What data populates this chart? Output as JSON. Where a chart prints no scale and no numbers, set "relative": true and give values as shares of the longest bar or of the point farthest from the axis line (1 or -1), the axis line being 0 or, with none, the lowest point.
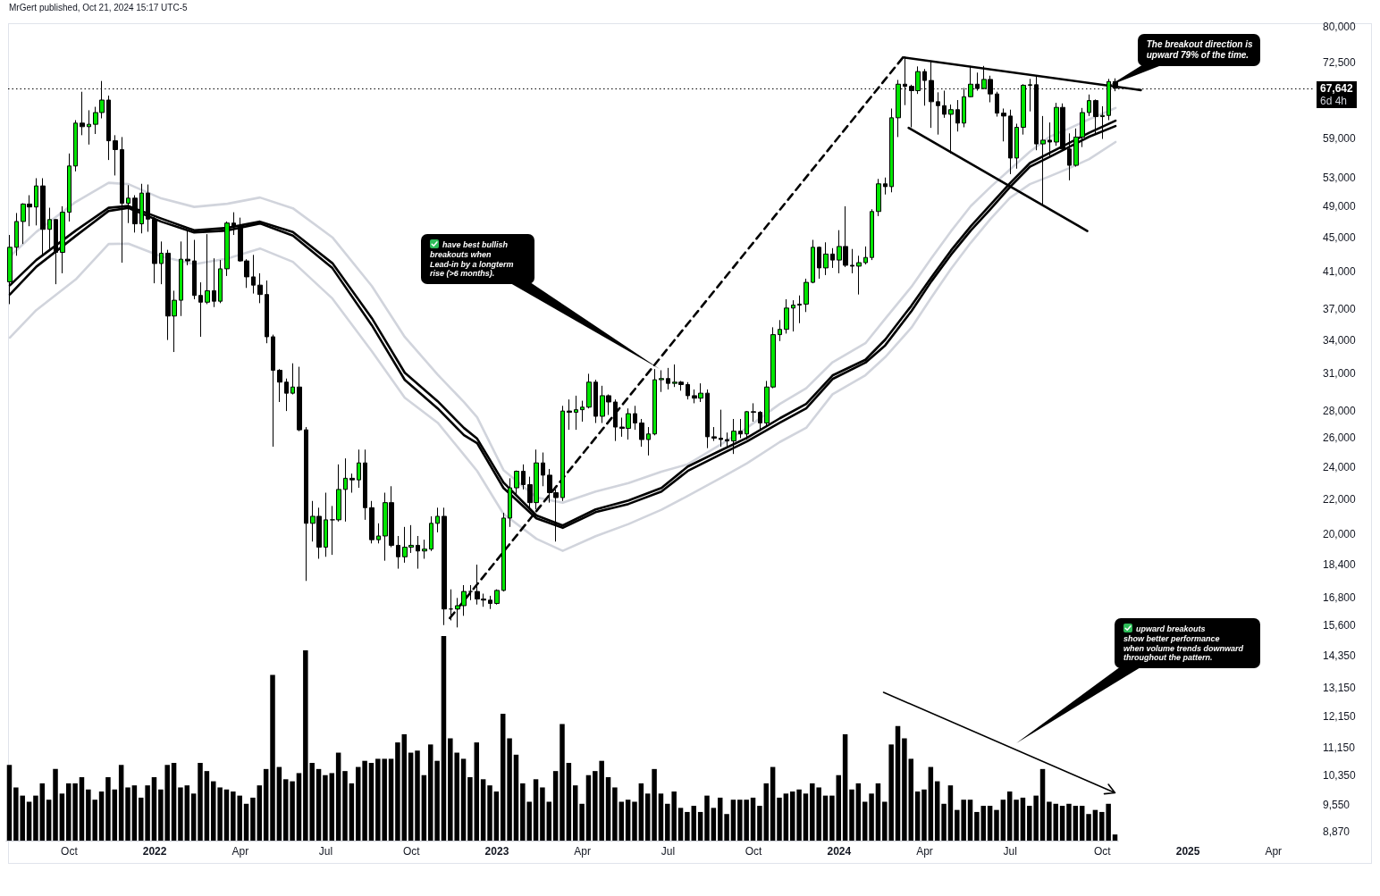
{
  "chart_data": [
    {
      "type": "candlestick",
      "title": "MrGert published, Oct 21, 2024 15:17 UTC-5",
      "x": [
        "2021-08-02",
        "2021-08-09",
        "2021-08-16",
        "2021-08-23",
        "2021-08-30",
        "2021-09-06",
        "2021-09-13",
        "2021-09-20",
        "2021-09-27",
        "2021-10-04",
        "2021-10-11",
        "2021-10-18",
        "2021-10-25",
        "2021-11-01",
        "2021-11-08",
        "2021-11-15",
        "2021-11-22",
        "2021-11-29",
        "2021-12-06",
        "2021-12-13",
        "2021-12-20",
        "2021-12-27",
        "2022-01-03",
        "2022-01-10",
        "2022-01-17",
        "2022-01-24",
        "2022-01-31",
        "2022-02-07",
        "2022-02-14",
        "2022-02-21",
        "2022-02-28",
        "2022-03-07",
        "2022-03-14",
        "2022-03-21",
        "2022-03-28",
        "2022-04-04",
        "2022-04-11",
        "2022-04-18",
        "2022-04-25",
        "2022-05-02",
        "2022-05-09",
        "2022-05-16",
        "2022-05-23",
        "2022-05-30",
        "2022-06-06",
        "2022-06-13",
        "2022-06-20",
        "2022-06-27",
        "2022-07-04",
        "2022-07-11",
        "2022-07-18",
        "2022-07-25",
        "2022-08-01",
        "2022-08-08",
        "2022-08-15",
        "2022-08-22",
        "2022-08-29",
        "2022-09-05",
        "2022-09-12",
        "2022-09-19",
        "2022-09-26",
        "2022-10-03",
        "2022-10-10",
        "2022-10-17",
        "2022-10-24",
        "2022-10-31",
        "2022-11-07",
        "2022-11-14",
        "2022-11-21",
        "2022-11-28",
        "2022-12-05",
        "2022-12-12",
        "2022-12-19",
        "2022-12-26",
        "2023-01-02",
        "2023-01-09",
        "2023-01-16",
        "2023-01-23",
        "2023-01-30",
        "2023-02-06",
        "2023-02-13",
        "2023-02-20",
        "2023-02-27",
        "2023-03-06",
        "2023-03-13",
        "2023-03-20",
        "2023-03-27",
        "2023-04-03",
        "2023-04-10",
        "2023-04-17",
        "2023-04-24",
        "2023-05-01",
        "2023-05-08",
        "2023-05-15",
        "2023-05-22",
        "2023-05-29",
        "2023-06-05",
        "2023-06-12",
        "2023-06-19",
        "2023-06-26",
        "2023-07-03",
        "2023-07-10",
        "2023-07-17",
        "2023-07-24",
        "2023-07-31",
        "2023-08-07",
        "2023-08-14",
        "2023-08-21",
        "2023-08-28",
        "2023-09-04",
        "2023-09-11",
        "2023-09-18",
        "2023-09-25",
        "2023-10-02",
        "2023-10-09",
        "2023-10-16",
        "2023-10-23",
        "2023-10-30",
        "2023-11-06",
        "2023-11-13",
        "2023-11-20",
        "2023-11-27",
        "2023-12-04",
        "2023-12-11",
        "2023-12-18",
        "2023-12-25",
        "2024-01-01",
        "2024-01-08",
        "2024-01-15",
        "2024-01-22",
        "2024-01-29",
        "2024-02-05",
        "2024-02-12",
        "2024-02-19",
        "2024-02-26",
        "2024-03-04",
        "2024-03-11",
        "2024-03-18",
        "2024-03-25",
        "2024-04-01",
        "2024-04-08",
        "2024-04-15",
        "2024-04-22",
        "2024-04-29",
        "2024-05-06",
        "2024-05-13",
        "2024-05-20",
        "2024-05-27",
        "2024-06-03",
        "2024-06-10",
        "2024-06-17",
        "2024-06-24",
        "2024-07-01",
        "2024-07-08",
        "2024-07-15",
        "2024-07-22",
        "2024-07-29",
        "2024-08-05",
        "2024-08-12",
        "2024-08-19",
        "2024-08-26",
        "2024-09-02",
        "2024-09-09",
        "2024-09-16",
        "2024-09-23",
        "2024-09-30",
        "2024-10-07",
        "2024-10-14",
        "2024-10-21"
      ],
      "ohlc": [
        [
          39860,
          45300,
          37500,
          43800
        ],
        [
          43800,
          48100,
          42800,
          47000
        ],
        [
          47000,
          49400,
          44200,
          49300
        ],
        [
          49300,
          50500,
          46400,
          48900
        ],
        [
          48900,
          52900,
          46500,
          51800
        ],
        [
          51800,
          52900,
          42800,
          46000
        ],
        [
          46000,
          48800,
          43400,
          47250
        ],
        [
          47250,
          47300,
          39600,
          43200
        ],
        [
          43200,
          49000,
          40800,
          48200
        ],
        [
          48200,
          56600,
          47000,
          54700
        ],
        [
          54700,
          62000,
          53900,
          61500
        ],
        [
          61500,
          67000,
          59500,
          60900
        ],
        [
          60900,
          63700,
          58000,
          61300
        ],
        [
          61300,
          64300,
          59700,
          63300
        ],
        [
          63300,
          69000,
          62300,
          65500
        ],
        [
          65500,
          66300,
          55600,
          58600
        ],
        [
          58600,
          59500,
          53300,
          57200
        ],
        [
          57200,
          59200,
          42000,
          49400
        ],
        [
          49400,
          51900,
          46800,
          50100
        ],
        [
          50100,
          50500,
          45600,
          46700
        ],
        [
          46700,
          52100,
          45500,
          50800
        ],
        [
          50800,
          52000,
          45700,
          47300
        ],
        [
          47300,
          47600,
          39700,
          41900
        ],
        [
          41900,
          44500,
          39600,
          43100
        ],
        [
          43100,
          43500,
          34000,
          36300
        ],
        [
          36300,
          38900,
          32900,
          37900
        ],
        [
          37900,
          44500,
          36300,
          42400
        ],
        [
          42400,
          45800,
          41700,
          42200
        ],
        [
          42200,
          44700,
          38000,
          38400
        ],
        [
          38400,
          39800,
          34300,
          37700
        ],
        [
          37700,
          45400,
          37500,
          38900
        ],
        [
          38900,
          42500,
          37200,
          37800
        ],
        [
          37800,
          42300,
          37600,
          41300
        ],
        [
          41300,
          47000,
          40500,
          46800
        ],
        [
          46800,
          48200,
          45300,
          46400
        ],
        [
          46400,
          47500,
          42100,
          42200
        ],
        [
          42200,
          42400,
          39200,
          40400
        ],
        [
          40400,
          42900,
          38600,
          39500
        ],
        [
          39500,
          40800,
          37600,
          38500
        ],
        [
          38500,
          40000,
          33700,
          34300
        ],
        [
          34300,
          34500,
          25400,
          31300
        ],
        [
          31300,
          31400,
          28700,
          30300
        ],
        [
          30300,
          30600,
          28000,
          29400
        ],
        [
          29400,
          31900,
          29300,
          29900
        ],
        [
          29900,
          31600,
          26500,
          26600
        ],
        [
          26600,
          26800,
          17600,
          20600
        ],
        [
          20600,
          21900,
          19600,
          21000
        ],
        [
          21000,
          21500,
          18700,
          19300
        ],
        [
          19300,
          22400,
          18800,
          20800
        ],
        [
          20800,
          21600,
          18900,
          20800
        ],
        [
          20800,
          24200,
          20700,
          22600
        ],
        [
          22600,
          24600,
          20700,
          23300
        ],
        [
          23300,
          23600,
          22400,
          23200
        ],
        [
          23200,
          25200,
          22700,
          24300
        ],
        [
          24300,
          25200,
          20800,
          21500
        ],
        [
          21500,
          21900,
          19500,
          19700
        ],
        [
          19700,
          20600,
          19500,
          19900
        ],
        [
          19900,
          22400,
          18600,
          21800
        ],
        [
          21800,
          22800,
          19300,
          19400
        ],
        [
          19400,
          19900,
          18200,
          18800
        ],
        [
          18800,
          20400,
          18500,
          19300
        ],
        [
          19300,
          20500,
          19000,
          19400
        ],
        [
          19400,
          19900,
          18200,
          19100
        ],
        [
          19100,
          19700,
          18700,
          19200
        ],
        [
          19200,
          21000,
          19100,
          20600
        ],
        [
          20600,
          21500,
          20100,
          21000
        ],
        [
          21000,
          21500,
          15600,
          16300
        ],
        [
          16300,
          17200,
          15800,
          16300
        ],
        [
          16300,
          16800,
          15500,
          16450
        ],
        [
          16450,
          17400,
          16000,
          17100
        ],
        [
          17100,
          17400,
          16700,
          17100
        ],
        [
          17100,
          18400,
          16500,
          16750
        ],
        [
          16750,
          17000,
          16400,
          16700
        ],
        [
          16700,
          16900,
          16300,
          16550
        ],
        [
          16550,
          17200,
          16500,
          17150
        ],
        [
          17150,
          21200,
          17100,
          20900
        ],
        [
          20900,
          23300,
          20400,
          22700
        ],
        [
          22700,
          23800,
          22300,
          23750
        ],
        [
          23750,
          24200,
          22600,
          22900
        ],
        [
          22900,
          23400,
          21400,
          21800
        ],
        [
          21800,
          25200,
          21400,
          24300
        ],
        [
          24300,
          25000,
          22800,
          23500
        ],
        [
          23500,
          23900,
          21800,
          22400
        ],
        [
          22400,
          22600,
          19600,
          22100
        ],
        [
          22100,
          28400,
          21900,
          28000
        ],
        [
          28000,
          28900,
          26600,
          27900
        ],
        [
          27900,
          29200,
          26600,
          28100
        ],
        [
          28100,
          28800,
          27200,
          28300
        ],
        [
          28300,
          31000,
          28200,
          30300
        ],
        [
          30300,
          30500,
          27100,
          27600
        ],
        [
          27600,
          30000,
          27100,
          29200
        ],
        [
          29200,
          29300,
          27700,
          28700
        ],
        [
          28700,
          28900,
          25800,
          26800
        ],
        [
          26800,
          27500,
          26100,
          26700
        ],
        [
          26700,
          28200,
          25900,
          27800
        ],
        [
          27800,
          28400,
          26600,
          27100
        ],
        [
          27100,
          27400,
          25400,
          25900
        ],
        [
          25900,
          26800,
          24800,
          26300
        ],
        [
          26300,
          31400,
          26200,
          30500
        ],
        [
          30500,
          31300,
          29500,
          30600
        ],
        [
          30600,
          31500,
          29700,
          30200
        ],
        [
          30200,
          31800,
          29900,
          30300
        ],
        [
          30300,
          30400,
          29600,
          30100
        ],
        [
          30100,
          30300,
          28900,
          29200
        ],
        [
          29200,
          29700,
          28600,
          29000
        ],
        [
          29000,
          30200,
          28700,
          29400
        ],
        [
          29400,
          29700,
          25300,
          26100
        ],
        [
          26100,
          26800,
          25800,
          26000
        ],
        [
          26000,
          28100,
          25400,
          25900
        ],
        [
          25900,
          26400,
          25300,
          25800
        ],
        [
          25800,
          27400,
          24900,
          26500
        ],
        [
          26500,
          27400,
          26000,
          26300
        ],
        [
          26300,
          28000,
          25900,
          27950
        ],
        [
          27950,
          28600,
          27200,
          27900
        ],
        [
          27900,
          28000,
          26500,
          27100
        ],
        [
          27100,
          30400,
          26800,
          29900
        ],
        [
          29900,
          35200,
          29800,
          34500
        ],
        [
          34500,
          35900,
          33900,
          35000
        ],
        [
          35000,
          38000,
          34600,
          37100
        ],
        [
          37100,
          37900,
          34800,
          37400
        ],
        [
          37400,
          38400,
          35600,
          37500
        ],
        [
          37500,
          40200,
          36700,
          39800
        ],
        [
          39800,
          44700,
          39700,
          43800
        ],
        [
          43800,
          43900,
          40200,
          41400
        ],
        [
          41400,
          44400,
          40600,
          43000
        ],
        [
          43000,
          43700,
          41400,
          42300
        ],
        [
          42300,
          45900,
          40800,
          43900
        ],
        [
          43900,
          49000,
          41500,
          41700
        ],
        [
          41700,
          43600,
          40800,
          41600
        ],
        [
          41600,
          42800,
          38500,
          42000
        ],
        [
          42000,
          43900,
          41800,
          42600
        ],
        [
          42600,
          48600,
          42300,
          48300
        ],
        [
          48300,
          52800,
          47700,
          52100
        ],
        [
          52100,
          53000,
          50600,
          51700
        ],
        [
          51700,
          64000,
          50900,
          62400
        ],
        [
          62400,
          69200,
          59200,
          68400
        ],
        [
          68400,
          73800,
          64600,
          68000
        ],
        [
          68000,
          68300,
          60800,
          67200
        ],
        [
          67200,
          71800,
          66600,
          70800
        ],
        [
          70800,
          71300,
          64500,
          69100
        ],
        [
          69100,
          72800,
          60700,
          65200
        ],
        [
          65200,
          66900,
          59600,
          64500
        ],
        [
          64500,
          67200,
          62400,
          63000
        ],
        [
          63000,
          64700,
          56600,
          63800
        ],
        [
          63800,
          65500,
          60100,
          61500
        ],
        [
          61500,
          67700,
          60800,
          66100
        ],
        [
          66100,
          71900,
          66000,
          68400
        ],
        [
          68400,
          70600,
          67200,
          67600
        ],
        [
          67600,
          71900,
          67500,
          69300
        ],
        [
          69300,
          70000,
          65100,
          66600
        ],
        [
          66600,
          67000,
          62600,
          63200
        ],
        [
          63200,
          64000,
          58500,
          62700
        ],
        [
          62700,
          63800,
          53500,
          55900
        ],
        [
          55900,
          61400,
          54300,
          60800
        ],
        [
          60800,
          68400,
          59600,
          68200
        ],
        [
          68200,
          69400,
          63500,
          68300
        ],
        [
          68300,
          70000,
          57100,
          58100
        ],
        [
          58100,
          62700,
          49000,
          58700
        ],
        [
          58700,
          61600,
          56100,
          58400
        ],
        [
          58400,
          65000,
          57800,
          64200
        ],
        [
          64200,
          64900,
          57200,
          57300
        ],
        [
          57300,
          59800,
          52600,
          54800
        ],
        [
          54800,
          60600,
          54600,
          59200
        ],
        [
          59200,
          64100,
          57600,
          63300
        ],
        [
          63300,
          66500,
          62700,
          65400
        ],
        [
          65400,
          65600,
          59800,
          62600
        ],
        [
          62600,
          64400,
          58900,
          62800
        ],
        [
          62800,
          69400,
          62000,
          68900
        ],
        [
          68900,
          69500,
          67100,
          67642
        ]
      ],
      "colors": [
        "#00e600",
        "#00e600",
        "#00e600",
        "#000000",
        "#00e600",
        "#000000",
        "#00e600",
        "#000000",
        "#00e600",
        "#00e600",
        "#00e600",
        "#000000",
        "#00e600",
        "#00e600",
        "#00e600",
        "#000000",
        "#000000",
        "#000000",
        "#00e600",
        "#000000",
        "#00e600",
        "#000000",
        "#000000",
        "#00e600",
        "#000000",
        "#00e600",
        "#00e600",
        "#000000",
        "#000000",
        "#000000",
        "#00e600",
        "#000000",
        "#00e600",
        "#00e600",
        "#000000",
        "#000000",
        "#000000",
        "#000000",
        "#000000",
        "#000000",
        "#000000",
        "#000000",
        "#000000",
        "#00e600",
        "#000000",
        "#000000",
        "#00e600",
        "#000000",
        "#00e600",
        "#000000",
        "#00e600",
        "#00e600",
        "#000000",
        "#00e600",
        "#000000",
        "#000000",
        "#00e600",
        "#00e600",
        "#000000",
        "#000000",
        "#00e600",
        "#00e600",
        "#000000",
        "#00e600",
        "#00e600",
        "#00e600",
        "#000000",
        "#000000",
        "#00e600",
        "#00e600",
        "#000000",
        "#000000",
        "#000000",
        "#000000",
        "#00e600",
        "#00e600",
        "#00e600",
        "#00e600",
        "#000000",
        "#000000",
        "#00e600",
        "#000000",
        "#000000",
        "#000000",
        "#00e600",
        "#000000",
        "#00e600",
        "#00e600",
        "#00e600",
        "#000000",
        "#00e600",
        "#000000",
        "#000000",
        "#000000",
        "#00e600",
        "#000000",
        "#000000",
        "#00e600",
        "#00e600",
        "#00e600",
        "#000000",
        "#00e600",
        "#000000",
        "#000000",
        "#000000",
        "#00e600",
        "#000000",
        "#000000",
        "#000000",
        "#000000",
        "#00e600",
        "#000000",
        "#00e600",
        "#000000",
        "#000000",
        "#00e600",
        "#00e600",
        "#00e600",
        "#00e600",
        "#00e600",
        "#00e600",
        "#00e600",
        "#00e600",
        "#000000",
        "#00e600",
        "#000000",
        "#00e600",
        "#000000",
        "#000000",
        "#00e600",
        "#00e600",
        "#00e600",
        "#00e600",
        "#000000",
        "#00e600",
        "#00e600",
        "#000000",
        "#000000",
        "#00e600",
        "#000000",
        "#000000",
        "#000000",
        "#000000",
        "#00e600",
        "#000000",
        "#00e600",
        "#00e600",
        "#000000",
        "#00e600",
        "#000000",
        "#000000",
        "#000000",
        "#000000",
        "#00e600",
        "#00e600",
        "#00e600",
        "#000000",
        "#00e600",
        "#000000",
        "#00e600",
        "#000000",
        "#000000",
        "#00e600",
        "#00e600",
        "#00e600",
        "#000000",
        "#00e600",
        "#00e600",
        "#000000"
      ],
      "series": [
        {
          "type": "line",
          "color": "#d1d4dc",
          "x": [
            "2021-08-02",
            "2021-08-30",
            "2021-10-11",
            "2021-11-15",
            "2021-12-06",
            "2022-01-10",
            "2022-02-14",
            "2022-03-21",
            "2022-04-25",
            "2022-05-30",
            "2022-07-11",
            "2022-08-22",
            "2022-09-26",
            "2022-10-31",
            "2022-11-28",
            "2022-12-12",
            "2023-01-09",
            "2023-02-13",
            "2023-03-13",
            "2023-04-17",
            "2023-05-22",
            "2023-06-26",
            "2023-07-24",
            "2023-08-28",
            "2023-09-25",
            "2023-10-30",
            "2023-11-27",
            "2023-12-25",
            "2024-01-29",
            "2024-02-19",
            "2024-03-18",
            "2024-04-08",
            "2024-04-29",
            "2024-05-20",
            "2024-06-10",
            "2024-07-01",
            "2024-07-22",
            "2024-08-12",
            "2024-09-02",
            "2024-09-23",
            "2024-10-21"
          ],
          "values": [
            42720,
            45680,
            49580,
            52240,
            52050,
            50060,
            48910,
            49330,
            50180,
            48730,
            45010,
            39400,
            34280,
            30930,
            28690,
            27520,
            23830,
            22110,
            21790,
            22470,
            23000,
            23720,
            24210,
            25550,
            26750,
            28550,
            29800,
            31990,
            33700,
            36020,
            39330,
            42500,
            45760,
            49020,
            51640,
            54210,
            56880,
            59260,
            60630,
            62150,
            64100
          ]
        },
        {
          "type": "line",
          "color": "#000000",
          "x": [
            "2021-08-02",
            "2021-08-30",
            "2021-10-11",
            "2021-11-15",
            "2021-12-06",
            "2022-01-10",
            "2022-02-14",
            "2022-03-21",
            "2022-04-25",
            "2022-05-30",
            "2022-07-11",
            "2022-08-22",
            "2022-09-26",
            "2022-10-31",
            "2022-11-28",
            "2022-12-12",
            "2023-01-09",
            "2023-02-13",
            "2023-03-13",
            "2023-04-17",
            "2023-05-22",
            "2023-06-26",
            "2023-07-24",
            "2023-08-28",
            "2023-09-25",
            "2023-10-30",
            "2023-11-27",
            "2023-12-25",
            "2024-01-29",
            "2024-02-19",
            "2024-03-18",
            "2024-04-08",
            "2024-04-29",
            "2024-05-20",
            "2024-06-10",
            "2024-07-01",
            "2024-07-22",
            "2024-08-12",
            "2024-09-02",
            "2024-09-23",
            "2024-10-21"
          ],
          "values": [
            39480,
            42300,
            45850,
            48790,
            49030,
            47380,
            45880,
            46180,
            46980,
            45660,
            41940,
            36090,
            31090,
            28760,
            26730,
            25960,
            23030,
            21050,
            20480,
            21400,
            21930,
            22690,
            24060,
            25140,
            26020,
            27450,
            28550,
            30860,
            32210,
            34030,
            37350,
            40330,
            43420,
            46380,
            49220,
            52220,
            55140,
            56690,
            58270,
            59900,
            61910
          ]
        },
        {
          "type": "line",
          "color": "#000000",
          "x": [
            "2021-08-02",
            "2021-08-30",
            "2021-10-11",
            "2021-11-15",
            "2021-12-06",
            "2022-01-10",
            "2022-02-14",
            "2022-03-21",
            "2022-04-25",
            "2022-05-30",
            "2022-07-11",
            "2022-08-22",
            "2022-09-26",
            "2022-10-31",
            "2022-11-28",
            "2022-12-12",
            "2023-01-09",
            "2023-02-13",
            "2023-03-13",
            "2023-04-17",
            "2023-05-22",
            "2023-06-26",
            "2023-07-24",
            "2023-08-28",
            "2023-09-25",
            "2023-10-30",
            "2023-11-27",
            "2023-12-25",
            "2024-01-29",
            "2024-02-19",
            "2024-03-18",
            "2024-04-08",
            "2024-04-29",
            "2024-05-20",
            "2024-06-10",
            "2024-07-01",
            "2024-07-22",
            "2024-08-12",
            "2024-09-02",
            "2024-09-23",
            "2024-10-21"
          ],
          "values": [
            38500,
            41530,
            45180,
            48380,
            48780,
            46980,
            45620,
            45850,
            46750,
            45230,
            41380,
            35390,
            30490,
            28200,
            26210,
            25650,
            22690,
            20880,
            20350,
            21240,
            21720,
            22470,
            23770,
            24870,
            25770,
            27120,
            28200,
            30560,
            31960,
            33500,
            36800,
            39890,
            42920,
            45850,
            48620,
            51680,
            54590,
            56080,
            57650,
            59260,
            61000
          ]
        },
        {
          "type": "line",
          "color": "#d1d4dc",
          "x": [
            "2021-08-02",
            "2021-08-30",
            "2021-10-11",
            "2021-11-15",
            "2021-12-06",
            "2022-01-10",
            "2022-02-14",
            "2022-03-21",
            "2022-04-25",
            "2022-05-30",
            "2022-07-11",
            "2022-08-22",
            "2022-09-26",
            "2022-10-31",
            "2022-11-28",
            "2022-12-12",
            "2023-01-09",
            "2023-02-13",
            "2023-03-13",
            "2023-04-17",
            "2023-05-22",
            "2023-06-26",
            "2023-07-24",
            "2023-08-28",
            "2023-09-25",
            "2023-10-30",
            "2023-11-27",
            "2023-12-25",
            "2024-01-29",
            "2024-02-19",
            "2024-03-18",
            "2024-04-08",
            "2024-04-29",
            "2024-05-20",
            "2024-06-10",
            "2024-07-01",
            "2024-07-22",
            "2024-08-12",
            "2024-09-02",
            "2024-09-23",
            "2024-10-21"
          ],
          "values": [
            34220,
            36890,
            40120,
            44200,
            44240,
            42730,
            41830,
            42460,
            43660,
            42090,
            38080,
            32970,
            29040,
            27120,
            24840,
            23770,
            21140,
            19750,
            19110,
            19890,
            20560,
            21380,
            22200,
            23310,
            24270,
            25730,
            26740,
            29310,
            30880,
            32440,
            35170,
            38160,
            41290,
            44340,
            47320,
            50170,
            52050,
            53180,
            54390,
            55730,
            58400
          ]
        },
        {
          "type": "line",
          "color": "#000000",
          "line_style": "dashed",
          "x": [
            "2022-11-13",
            "2024-03-09"
          ],
          "values": [
            15900,
            73600
          ]
        },
        {
          "type": "line",
          "color": "#000000",
          "x": [
            "2024-03-09",
            "2024-11-17"
          ],
          "values": [
            73600,
            67300
          ]
        },
        {
          "type": "line",
          "color": "#000000",
          "x": [
            "2024-03-15",
            "2024-09-21"
          ],
          "values": [
            60700,
            45800
          ]
        }
      ],
      "xlim": [
        "2021-07-31",
        "2025-05-20"
      ],
      "xticks": [
        {
          "value": "2021-10-04",
          "label": "Oct"
        },
        {
          "value": "2022-01-03",
          "label": "2022"
        },
        {
          "value": "2022-04-04",
          "label": "Apr"
        },
        {
          "value": "2022-07-04",
          "label": "Jul"
        },
        {
          "value": "2022-10-03",
          "label": "Oct"
        },
        {
          "value": "2023-01-02",
          "label": "2023"
        },
        {
          "value": "2023-04-03",
          "label": "Apr"
        },
        {
          "value": "2023-07-03",
          "label": "Jul"
        },
        {
          "value": "2023-10-02",
          "label": "Oct"
        },
        {
          "value": "2024-01-01",
          "label": "2024"
        },
        {
          "value": "2024-04-01",
          "label": "Apr"
        },
        {
          "value": "2024-07-01",
          "label": "Jul"
        },
        {
          "value": "2024-10-07",
          "label": "Oct"
        },
        {
          "value": "2025-01-06",
          "label": "2025"
        },
        {
          "value": "2025-04-07",
          "label": "Apr"
        }
      ],
      "ylim": [
        8870,
        80800
      ],
      "yticks": [
        {
          "value": 80000,
          "label": "80,000"
        },
        {
          "value": 72500,
          "label": "72,500"
        },
        {
          "value": 59000,
          "label": "59,000"
        },
        {
          "value": 53000,
          "label": "53,000"
        },
        {
          "value": 49000,
          "label": "49,000"
        },
        {
          "value": 45000,
          "label": "45,000"
        },
        {
          "value": 41000,
          "label": "41,000"
        },
        {
          "value": 37000,
          "label": "37,000"
        },
        {
          "value": 34000,
          "label": "34,000"
        },
        {
          "value": 31000,
          "label": "31,000"
        },
        {
          "value": 28000,
          "label": "28,000"
        },
        {
          "value": 26000,
          "label": "26,000"
        },
        {
          "value": 24000,
          "label": "24,000"
        },
        {
          "value": 22000,
          "label": "22,000"
        },
        {
          "value": 20000,
          "label": "20,000"
        },
        {
          "value": 18400,
          "label": "18,400"
        },
        {
          "value": 16800,
          "label": "16,800"
        },
        {
          "value": 15600,
          "label": "15,600"
        },
        {
          "value": 14350,
          "label": "14,350"
        },
        {
          "value": 13150,
          "label": "13,150"
        },
        {
          "value": 12150,
          "label": "12,150"
        },
        {
          "value": 11150,
          "label": "11,150"
        },
        {
          "value": 10350,
          "label": "10,350"
        },
        {
          "value": 9550,
          "label": "9,550"
        },
        {
          "value": 8870,
          "label": "8,870"
        }
      ],
      "log": true,
      "marker": "none",
      "ref_lines": [
        {
          "axis": "y",
          "value": 67642,
          "label": "67,642\n6d 4h",
          "color": "#000000",
          "line_style": "dotted"
        }
      ],
      "annotations": [
        "have best bullish\nbreakouts when\nLead-in by a longterm\nrise (>6 months).",
        {
          "text": "The breakout direction is\nupward 79% of the time.",
          "x": "2024-10-14",
          "y": 68100
        }
      ]
    },
    {
      "type": "bar",
      "relative": true,
      "color": "#000000",
      "categories": [
        null,
        null,
        null,
        null,
        null,
        null,
        null,
        null,
        null,
        null,
        null,
        null,
        null,
        null,
        null,
        null,
        null,
        null,
        null,
        null,
        null,
        null,
        null,
        null,
        null,
        null,
        null,
        null,
        null,
        null,
        null,
        null,
        null,
        null,
        null,
        null,
        null,
        null,
        null,
        null,
        null,
        null,
        null,
        null,
        null,
        null,
        null,
        null,
        null,
        null,
        null,
        null,
        null,
        null,
        null,
        null,
        null,
        null,
        null,
        null,
        null,
        null,
        null,
        null,
        null,
        null,
        null,
        null,
        null,
        null,
        null,
        null,
        null,
        null,
        null,
        null,
        null,
        null,
        null,
        null,
        null,
        null,
        null,
        null,
        null,
        null,
        null,
        null,
        null,
        null,
        null,
        null,
        null,
        null,
        null,
        null,
        null,
        null,
        null,
        null,
        null,
        null,
        null,
        null,
        null,
        null,
        null,
        null,
        null,
        null,
        null,
        null,
        null,
        null,
        null,
        null,
        null,
        null,
        null,
        null,
        null,
        null,
        null,
        null,
        null,
        null,
        null,
        null,
        null,
        null,
        null,
        null,
        null,
        null,
        null,
        null,
        null,
        null,
        null,
        null,
        null,
        null,
        null,
        null,
        null,
        null,
        null,
        null,
        null,
        null,
        null,
        null,
        null,
        null,
        null,
        null,
        null,
        null,
        null,
        null,
        null,
        null,
        null,
        null,
        null,
        null,
        null,
        null,
        null
      ],
      "values": [
        0.37,
        0.26,
        0.22,
        0.19,
        0.22,
        0.28,
        0.2,
        0.35,
        0.23,
        0.28,
        0.28,
        0.31,
        0.25,
        0.2,
        0.24,
        0.31,
        0.25,
        0.37,
        0.26,
        0.27,
        0.21,
        0.27,
        0.31,
        0.25,
        0.37,
        0.38,
        0.26,
        0.27,
        0.23,
        0.38,
        0.34,
        0.29,
        0.26,
        0.25,
        0.24,
        0.22,
        0.18,
        0.21,
        0.27,
        0.35,
        0.81,
        0.36,
        0.3,
        0.29,
        0.33,
        0.93,
        0.38,
        0.35,
        0.32,
        0.33,
        0.43,
        0.34,
        0.28,
        0.36,
        0.39,
        0.38,
        0.4,
        0.4,
        0.4,
        0.48,
        0.52,
        0.43,
        0.44,
        0.32,
        0.47,
        0.39,
        1,
        0.5,
        0.43,
        0.4,
        0.31,
        0.48,
        0.3,
        0.27,
        0.24,
        0.62,
        0.5,
        0.42,
        0.28,
        0.19,
        0.3,
        0.26,
        0.19,
        0.34,
        0.57,
        0.38,
        0.27,
        0.18,
        0.32,
        0.34,
        0.39,
        0.31,
        0.26,
        0.19,
        0.2,
        0.19,
        0.28,
        0.23,
        0.35,
        0.23,
        0.18,
        0.24,
        0.16,
        0.14,
        0.17,
        0.14,
        0.22,
        0.16,
        0.21,
        0.13,
        0.2,
        0.2,
        0.2,
        0.21,
        0.17,
        0.28,
        0.36,
        0.21,
        0.23,
        0.24,
        0.25,
        0.23,
        0.28,
        0.26,
        0.22,
        0.22,
        0.32,
        0.52,
        0.25,
        0.28,
        0.19,
        0.23,
        0.28,
        0.19,
        0.47,
        0.56,
        0.5,
        0.4,
        0.24,
        0.25,
        0.36,
        0.29,
        0.18,
        0.27,
        0.15,
        0.2,
        0.2,
        0.14,
        0.17,
        0.17,
        0.15,
        0.2,
        0.24,
        0.2,
        0.21,
        0.17,
        0.22,
        0.35,
        0.19,
        0.18,
        0.17,
        0.18,
        0.17,
        0.17,
        0.13,
        0.15,
        0.14,
        0.18,
        0.03
      ],
      "annotations": [
        "upward breakouts\nshow better performance\nwhen volume trends downward\nthroughout the pattern."
      ]
    }
  ]
}
